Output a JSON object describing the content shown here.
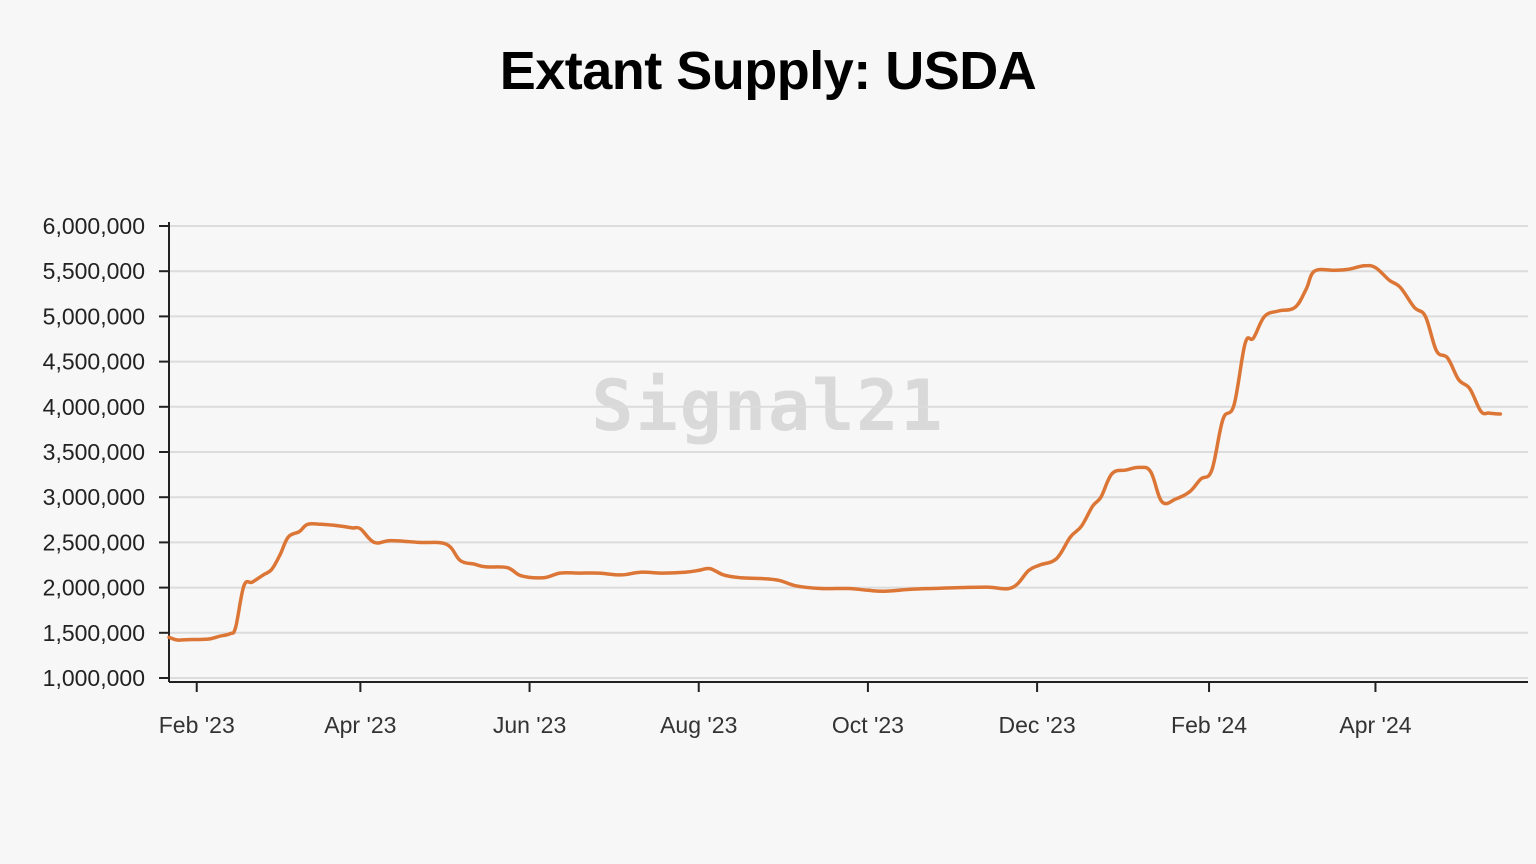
{
  "chart_data": {
    "type": "line",
    "title": "Extant Supply: USDA",
    "watermark": "Signal21",
    "xlabel": "",
    "ylabel": "",
    "ylim": [
      1000000,
      6000000
    ],
    "y_ticks": [
      1000000,
      1500000,
      2000000,
      2500000,
      3000000,
      3500000,
      4000000,
      4500000,
      5000000,
      5500000,
      6000000
    ],
    "y_tick_labels": [
      "1,000,000",
      "1,500,000",
      "2,000,000",
      "2,500,000",
      "3,000,000",
      "3,500,000",
      "4,000,000",
      "4,500,000",
      "5,000,000",
      "5,500,000",
      "6,000,000"
    ],
    "x_domain_days": [
      -10,
      480
    ],
    "x_ticks": [
      {
        "label": "Feb '23",
        "day": 0
      },
      {
        "label": "Apr '23",
        "day": 59
      },
      {
        "label": "Jun '23",
        "day": 120
      },
      {
        "label": "Aug '23",
        "day": 181
      },
      {
        "label": "Oct '23",
        "day": 242
      },
      {
        "label": "Dec '23",
        "day": 303
      },
      {
        "label": "Feb '24",
        "day": 365
      },
      {
        "label": "Apr '24",
        "day": 425
      }
    ],
    "grid": true,
    "series": [
      {
        "name": "USDA",
        "color": "#dc7636",
        "points": [
          [
            -10,
            1450000
          ],
          [
            -7,
            1420000
          ],
          [
            -3,
            1425000
          ],
          [
            4,
            1430000
          ],
          [
            8,
            1460000
          ],
          [
            12,
            1490000
          ],
          [
            14,
            1560000
          ],
          [
            17,
            2020000
          ],
          [
            20,
            2060000
          ],
          [
            24,
            2140000
          ],
          [
            27,
            2200000
          ],
          [
            30,
            2360000
          ],
          [
            33,
            2560000
          ],
          [
            37,
            2620000
          ],
          [
            40,
            2700000
          ],
          [
            45,
            2700000
          ],
          [
            52,
            2680000
          ],
          [
            56,
            2660000
          ],
          [
            59,
            2650000
          ],
          [
            64,
            2500000
          ],
          [
            70,
            2520000
          ],
          [
            80,
            2500000
          ],
          [
            90,
            2480000
          ],
          [
            95,
            2300000
          ],
          [
            100,
            2260000
          ],
          [
            104,
            2230000
          ],
          [
            112,
            2220000
          ],
          [
            117,
            2130000
          ],
          [
            125,
            2110000
          ],
          [
            131,
            2160000
          ],
          [
            138,
            2160000
          ],
          [
            145,
            2160000
          ],
          [
            153,
            2140000
          ],
          [
            160,
            2170000
          ],
          [
            168,
            2160000
          ],
          [
            176,
            2170000
          ],
          [
            181,
            2190000
          ],
          [
            185,
            2210000
          ],
          [
            190,
            2140000
          ],
          [
            196,
            2110000
          ],
          [
            204,
            2100000
          ],
          [
            210,
            2080000
          ],
          [
            216,
            2020000
          ],
          [
            225,
            1990000
          ],
          [
            235,
            1990000
          ],
          [
            242,
            1970000
          ],
          [
            248,
            1960000
          ],
          [
            257,
            1980000
          ],
          [
            265,
            1990000
          ],
          [
            275,
            2000000
          ],
          [
            285,
            2005000
          ],
          [
            294,
            2000000
          ],
          [
            300,
            2190000
          ],
          [
            304,
            2250000
          ],
          [
            310,
            2320000
          ],
          [
            315,
            2560000
          ],
          [
            319,
            2680000
          ],
          [
            323,
            2900000
          ],
          [
            326,
            3000000
          ],
          [
            330,
            3260000
          ],
          [
            335,
            3300000
          ],
          [
            340,
            3330000
          ],
          [
            344,
            3280000
          ],
          [
            348,
            2950000
          ],
          [
            353,
            2980000
          ],
          [
            358,
            3060000
          ],
          [
            362,
            3200000
          ],
          [
            366,
            3300000
          ],
          [
            370,
            3860000
          ],
          [
            374,
            4020000
          ],
          [
            378,
            4700000
          ],
          [
            381,
            4760000
          ],
          [
            385,
            5000000
          ],
          [
            390,
            5060000
          ],
          [
            396,
            5100000
          ],
          [
            400,
            5300000
          ],
          [
            403,
            5500000
          ],
          [
            410,
            5510000
          ],
          [
            415,
            5520000
          ],
          [
            421,
            5560000
          ],
          [
            425,
            5540000
          ],
          [
            430,
            5400000
          ],
          [
            434,
            5320000
          ],
          [
            439,
            5100000
          ],
          [
            443,
            5000000
          ],
          [
            447,
            4620000
          ],
          [
            451,
            4540000
          ],
          [
            455,
            4300000
          ],
          [
            459,
            4200000
          ],
          [
            463,
            3950000
          ],
          [
            466,
            3930000
          ],
          [
            470,
            3920000
          ]
        ]
      }
    ]
  }
}
